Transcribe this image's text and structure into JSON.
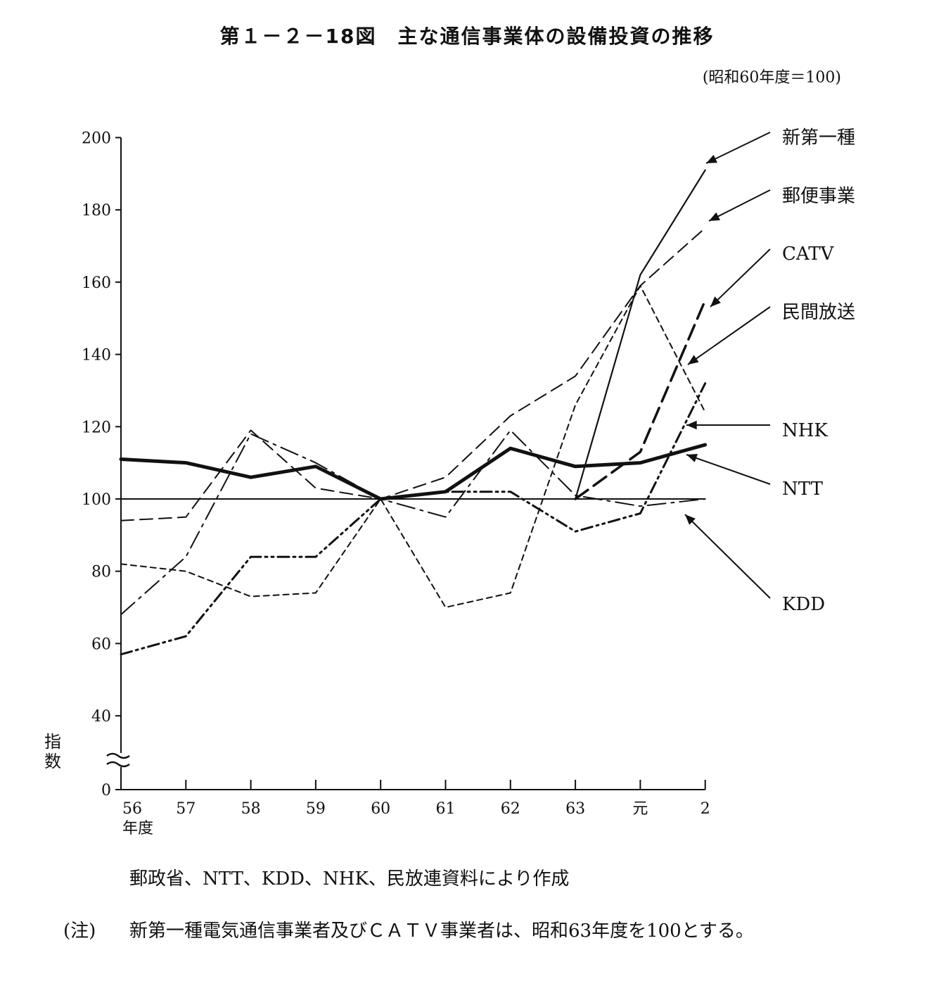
{
  "chart_data": {
    "type": "line",
    "title": "第１－２－18図　主な通信事業体の設備投資の推移",
    "base_note": "(昭和60年度＝100)",
    "ylabel": "指数",
    "xlabel_unit": "年度",
    "categories": [
      "56",
      "57",
      "58",
      "59",
      "60",
      "61",
      "62",
      "63",
      "元",
      "2"
    ],
    "yticks": [
      0,
      40,
      60,
      80,
      100,
      120,
      140,
      160,
      180,
      200
    ],
    "ylim": [
      0,
      200
    ],
    "axis_break": true,
    "series": [
      {
        "name": "新第一種",
        "style": "solid",
        "values": [
          null,
          null,
          null,
          null,
          null,
          null,
          null,
          100,
          162,
          191
        ]
      },
      {
        "name": "郵便事業",
        "style": "dashed",
        "values": [
          94,
          95,
          119,
          103,
          100,
          106,
          123,
          134,
          159,
          175
        ]
      },
      {
        "name": "CATV",
        "style": "dashed-bold",
        "values": [
          null,
          null,
          null,
          null,
          null,
          null,
          null,
          100,
          113,
          155
        ]
      },
      {
        "name": "民間放送",
        "style": "short-dash",
        "values": [
          82,
          80,
          73,
          74,
          100,
          70,
          74,
          126,
          159,
          124
        ]
      },
      {
        "name": "NHK",
        "style": "dash-dot-dot",
        "values": [
          57,
          62,
          84,
          84,
          100,
          102,
          102,
          91,
          96,
          132
        ]
      },
      {
        "name": "NTT",
        "style": "bold",
        "values": [
          111,
          110,
          106,
          109,
          100,
          102,
          114,
          109,
          110,
          115
        ]
      },
      {
        "name": "KDD",
        "style": "long-dash-dot",
        "values": [
          68,
          84,
          118,
          110,
          100,
          95,
          119,
          101,
          98,
          100
        ]
      }
    ]
  },
  "source": "郵政省、NTT、KDD、NHK、民放連資料により作成",
  "note_label": "(注)",
  "note_text": "新第一種電気通信事業者及びＣＡＴＶ事業者は、昭和63年度を100とする。",
  "colors": {
    "ink": "#111111",
    "background": "#ffffff"
  }
}
